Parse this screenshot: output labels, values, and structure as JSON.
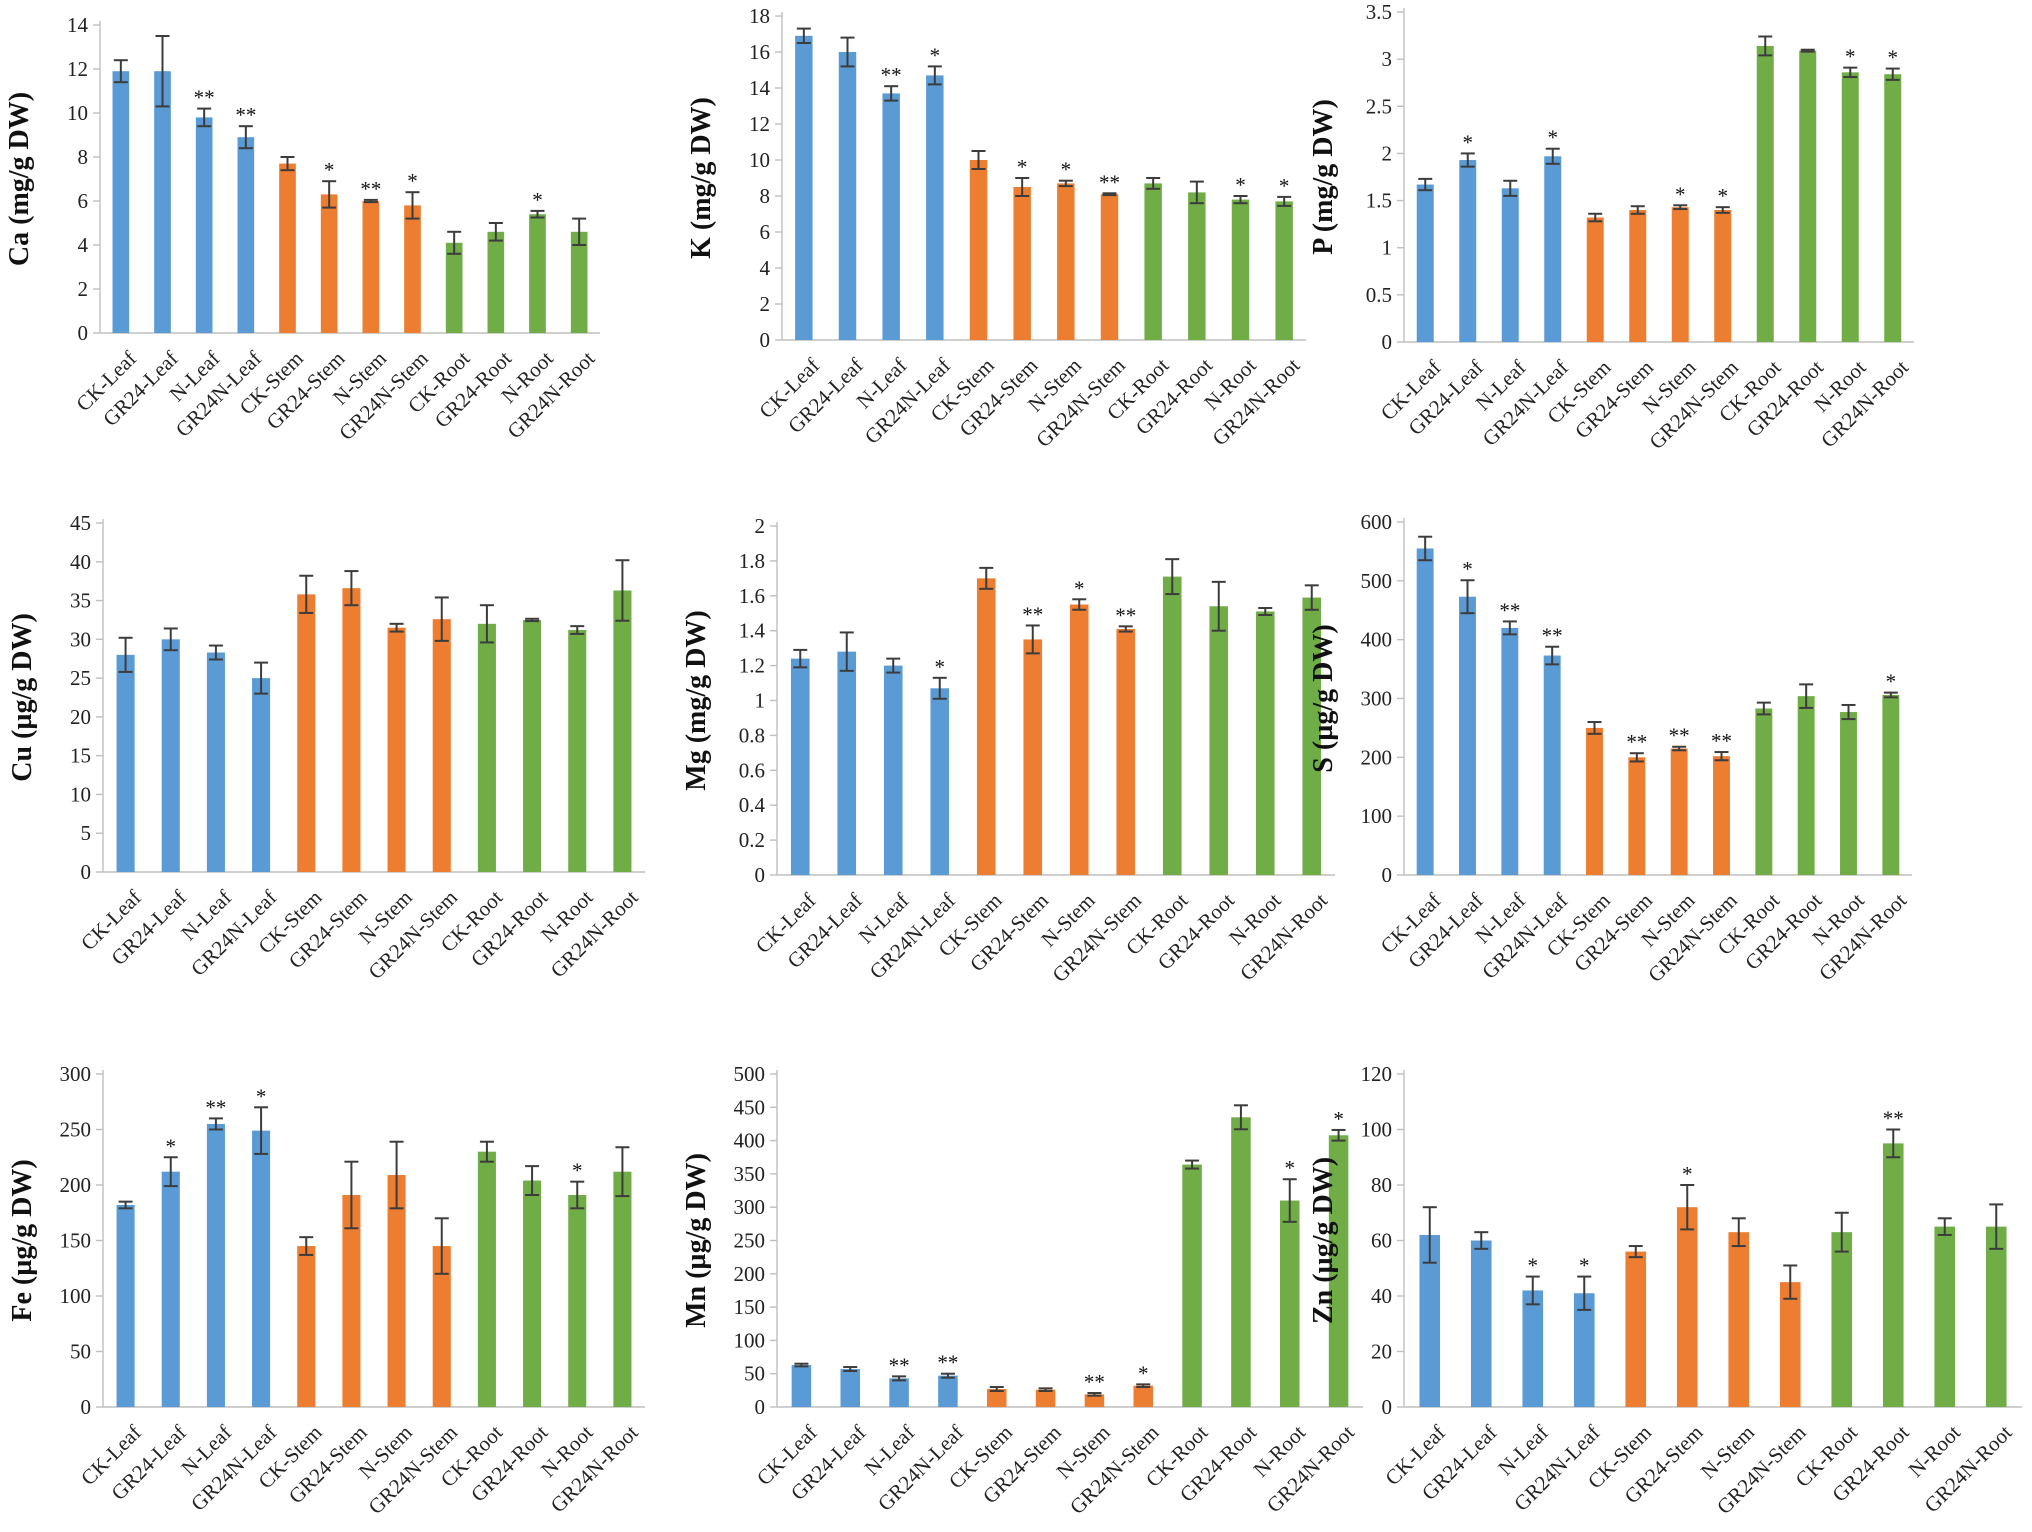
{
  "colors": {
    "leaf": "#5b9bd5",
    "stem": "#ed7d31",
    "root": "#70ad47"
  },
  "categories": [
    "CK-Leaf",
    "GR24-Leaf",
    "N-Leaf",
    "GR24N-Leaf",
    "CK-Stem",
    "GR24-Stem",
    "N-Stem",
    "GR24N-Stem",
    "CK-Root",
    "GR24-Root",
    "N-Root",
    "GR24N-Root"
  ],
  "groups": [
    "leaf",
    "leaf",
    "leaf",
    "leaf",
    "stem",
    "stem",
    "stem",
    "stem",
    "root",
    "root",
    "root",
    "root"
  ],
  "chart_data": [
    {
      "type": "bar",
      "element": "Ca",
      "ylabel": "Ca (mg/g DW)",
      "ylim": [
        0,
        14
      ],
      "ystep": 2,
      "ytick_labels": [
        "0",
        "2",
        "4",
        "6",
        "8",
        "10",
        "12",
        "14"
      ],
      "values": [
        11.9,
        11.9,
        9.8,
        8.9,
        7.7,
        6.3,
        6.0,
        5.8,
        4.1,
        4.6,
        5.4,
        4.6
      ],
      "errors": [
        0.5,
        1.6,
        0.4,
        0.5,
        0.3,
        0.6,
        0.05,
        0.6,
        0.5,
        0.4,
        0.15,
        0.6
      ],
      "sig": [
        "",
        "",
        "**",
        "**",
        "",
        "*",
        "**",
        "*",
        "",
        "",
        "*",
        ""
      ]
    },
    {
      "type": "bar",
      "element": "K",
      "ylabel": "K (mg/g DW)",
      "ylim": [
        0,
        18
      ],
      "ystep": 2,
      "ytick_labels": [
        "0",
        "2",
        "4",
        "6",
        "8",
        "10",
        "12",
        "14",
        "16",
        "18"
      ],
      "values": [
        16.9,
        16.0,
        13.7,
        14.7,
        10.0,
        8.5,
        8.7,
        8.1,
        8.7,
        8.2,
        7.8,
        7.7
      ],
      "errors": [
        0.4,
        0.8,
        0.4,
        0.5,
        0.5,
        0.5,
        0.15,
        0.05,
        0.3,
        0.6,
        0.2,
        0.25
      ],
      "sig": [
        "",
        "",
        "**",
        "*",
        "",
        "*",
        "*",
        "**",
        "",
        "",
        "*",
        "*"
      ]
    },
    {
      "type": "bar",
      "element": "P",
      "ylabel": "P (mg/g DW)",
      "ylim": [
        0,
        3.5
      ],
      "ystep": 0.5,
      "ytick_labels": [
        "0",
        "0.5",
        "1",
        "1.5",
        "2",
        "2.5",
        "3",
        "3.5"
      ],
      "values": [
        1.67,
        1.93,
        1.63,
        1.97,
        1.32,
        1.4,
        1.43,
        1.4,
        3.14,
        3.09,
        2.86,
        2.84
      ],
      "errors": [
        0.06,
        0.07,
        0.08,
        0.08,
        0.04,
        0.04,
        0.02,
        0.03,
        0.1,
        0.01,
        0.05,
        0.06
      ],
      "sig": [
        "",
        "*",
        "",
        "*",
        "",
        "",
        "*",
        "*",
        "",
        "",
        "*",
        "*"
      ]
    },
    {
      "type": "bar",
      "element": "Cu",
      "ylabel": "Cu (µg/g DW)",
      "ylim": [
        0,
        45
      ],
      "ystep": 5,
      "ytick_labels": [
        "0",
        "5",
        "10",
        "15",
        "20",
        "25",
        "30",
        "35",
        "40",
        "45"
      ],
      "values": [
        28.0,
        30.0,
        28.3,
        25.0,
        35.8,
        36.6,
        31.5,
        32.6,
        32.0,
        32.5,
        31.2,
        36.3
      ],
      "errors": [
        2.2,
        1.4,
        0.9,
        2.0,
        2.4,
        2.2,
        0.5,
        2.8,
        2.4,
        0.15,
        0.5,
        3.9
      ],
      "sig": [
        "",
        "",
        "",
        "",
        "",
        "",
        "",
        "",
        "",
        "",
        "",
        ""
      ]
    },
    {
      "type": "bar",
      "element": "Mg",
      "ylabel": "Mg (mg/g DW)",
      "ylim": [
        0,
        2
      ],
      "ystep": 0.2,
      "ytick_labels": [
        "0",
        "0.2",
        "0.4",
        "0.6",
        "0.8",
        "1",
        "1.2",
        "1.4",
        "1.6",
        "1.8",
        "2"
      ],
      "values": [
        1.24,
        1.28,
        1.2,
        1.07,
        1.7,
        1.35,
        1.55,
        1.41,
        1.71,
        1.54,
        1.51,
        1.59
      ],
      "errors": [
        0.05,
        0.11,
        0.04,
        0.06,
        0.06,
        0.08,
        0.03,
        0.015,
        0.1,
        0.14,
        0.02,
        0.07
      ],
      "sig": [
        "",
        "",
        "",
        "*",
        "",
        "**",
        "*",
        "**",
        "",
        "",
        "",
        ""
      ]
    },
    {
      "type": "bar",
      "element": "S",
      "ylabel": "S (µg/g DW)",
      "ylim": [
        0,
        600
      ],
      "ystep": 100,
      "ytick_labels": [
        "0",
        "100",
        "200",
        "300",
        "400",
        "500",
        "600"
      ],
      "values": [
        555,
        473,
        420,
        373,
        250,
        200,
        215,
        202,
        283,
        304,
        277,
        306
      ],
      "errors": [
        20,
        28,
        11,
        15,
        10,
        7,
        3,
        7,
        10,
        20,
        12,
        4
      ],
      "sig": [
        "",
        "*",
        "**",
        "**",
        "",
        "**",
        "**",
        "**",
        "",
        "",
        "",
        "*"
      ]
    },
    {
      "type": "bar",
      "element": "Fe",
      "ylabel": "Fe (µg/g DW)",
      "ylim": [
        0,
        300
      ],
      "ystep": 50,
      "ytick_labels": [
        "0",
        "50",
        "100",
        "150",
        "200",
        "250",
        "300"
      ],
      "values": [
        182,
        212,
        255,
        249,
        145,
        191,
        209,
        145,
        230,
        204,
        191,
        212
      ],
      "errors": [
        3,
        13,
        5,
        21,
        8,
        30,
        30,
        25,
        9,
        13,
        12,
        22
      ],
      "sig": [
        "",
        "*",
        "**",
        "*",
        "",
        "",
        "",
        "",
        "",
        "",
        "*",
        ""
      ]
    },
    {
      "type": "bar",
      "element": "Mn",
      "ylabel": "Mn (µg/g DW)",
      "ylim": [
        0,
        500
      ],
      "ystep": 50,
      "ytick_labels": [
        "0",
        "50",
        "100",
        "150",
        "200",
        "250",
        "300",
        "350",
        "400",
        "450",
        "500"
      ],
      "values": [
        63,
        57,
        43,
        47,
        27,
        26,
        19,
        32,
        364,
        435,
        310,
        408
      ],
      "errors": [
        2,
        3,
        3,
        3,
        3,
        2,
        2,
        2,
        6,
        18,
        32,
        8
      ],
      "sig": [
        "",
        "",
        "**",
        "**",
        "",
        "",
        "**",
        "*",
        "",
        "",
        "*",
        "*"
      ]
    },
    {
      "type": "bar",
      "element": "Zn",
      "ylabel": "Zn (µg/g DW)",
      "ylim": [
        0,
        120
      ],
      "ystep": 20,
      "ytick_labels": [
        "0",
        "20",
        "40",
        "60",
        "80",
        "100",
        "120"
      ],
      "values": [
        62,
        60,
        42,
        41,
        56,
        72,
        63,
        45,
        63,
        95,
        65,
        65
      ],
      "errors": [
        10,
        3,
        5,
        6,
        2,
        8,
        5,
        6,
        7,
        5,
        3,
        8
      ],
      "sig": [
        "",
        "",
        "*",
        "*",
        "",
        "*",
        "",
        "",
        "",
        "**",
        "",
        ""
      ]
    }
  ]
}
